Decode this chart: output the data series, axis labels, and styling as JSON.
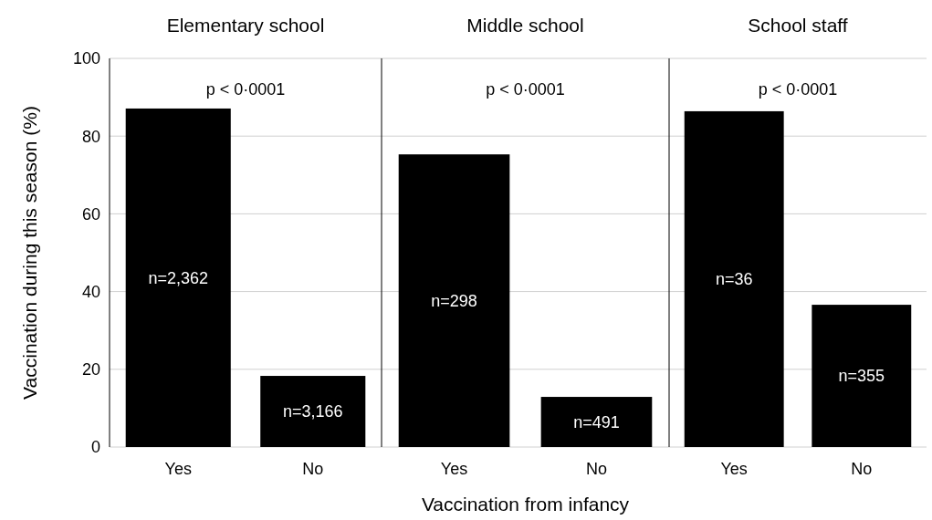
{
  "chart_data": [
    {
      "type": "bar",
      "title": "Elementary school",
      "ylabel": "Vaccination during this season (%)",
      "categories": [
        "Yes",
        "No"
      ],
      "values": [
        87.1,
        18.3
      ],
      "color": "#000000",
      "ylim": [
        0,
        100
      ],
      "yticks": [
        0,
        20,
        40,
        60,
        80,
        100
      ],
      "grid": "y",
      "annotations": [
        "p < 0·0001",
        "n=2,362",
        "n=3,166"
      ]
    },
    {
      "type": "bar",
      "title": "Middle school",
      "xlabel": "Vaccination from infancy",
      "categories": [
        "Yes",
        "No"
      ],
      "values": [
        75.3,
        12.9
      ],
      "color": "#000000",
      "ylim": [
        0,
        100
      ],
      "yticks": [
        0,
        20,
        40,
        60,
        80,
        100
      ],
      "grid": "y",
      "tick_labels": "x",
      "annotations": [
        "p < 0·0001",
        "n=298",
        "n=491"
      ]
    },
    {
      "type": "bar",
      "title": "School staff",
      "categories": [
        "Yes",
        "No"
      ],
      "values": [
        86.4,
        36.6
      ],
      "color": "#000000",
      "ylim": [
        0,
        100
      ],
      "yticks": [
        0,
        20,
        40,
        60,
        80,
        100
      ],
      "grid": "y",
      "tick_labels": "x",
      "annotations": [
        "p < 0·0001",
        "n=36",
        "n=355"
      ]
    }
  ]
}
